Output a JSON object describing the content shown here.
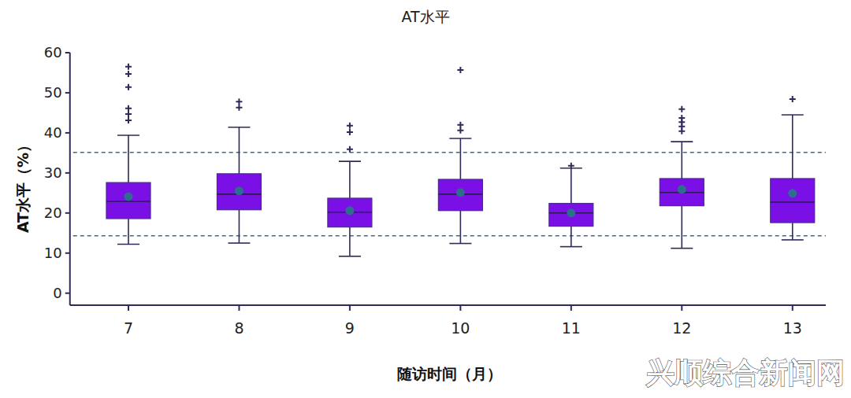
{
  "chart_data": {
    "type": "box",
    "title": "AT水平",
    "x_label": "随访时间（月）",
    "y_label": "AT水平（%）",
    "categories": [
      "7",
      "8",
      "9",
      "10",
      "11",
      "12",
      "13"
    ],
    "boxes": [
      {
        "min": 12.2,
        "q1": 18.6,
        "median": 22.9,
        "q3": 27.6,
        "max": 39.4,
        "mean": 24.1,
        "outliers": [
          56.5,
          54.7,
          51.4,
          46.1,
          44.7,
          43.1
        ]
      },
      {
        "min": 12.5,
        "q1": 20.8,
        "median": 24.7,
        "q3": 29.8,
        "max": 41.4,
        "mean": 25.5,
        "outliers": [
          47.8,
          46.3
        ]
      },
      {
        "min": 9.2,
        "q1": 16.5,
        "median": 20.2,
        "q3": 23.7,
        "max": 32.9,
        "mean": 20.6,
        "outliers": [
          41.8,
          40.2,
          35.9
        ]
      },
      {
        "min": 12.4,
        "q1": 20.6,
        "median": 24.7,
        "q3": 28.4,
        "max": 38.6,
        "mean": 25.1,
        "outliers": [
          55.7,
          42.0,
          40.6
        ]
      },
      {
        "min": 11.6,
        "q1": 16.7,
        "median": 20.0,
        "q3": 22.4,
        "max": 31.2,
        "mean": 20.0,
        "outliers": [
          31.8
        ]
      },
      {
        "min": 11.2,
        "q1": 21.8,
        "median": 25.1,
        "q3": 28.6,
        "max": 37.8,
        "mean": 25.9,
        "outliers": [
          45.9,
          43.7,
          42.7,
          41.6,
          40.4
        ]
      },
      {
        "min": 13.3,
        "q1": 17.6,
        "median": 22.7,
        "q3": 28.6,
        "max": 44.5,
        "mean": 24.9,
        "outliers": [
          48.4
        ]
      }
    ],
    "reference_lines": [
      35.1,
      14.3
    ],
    "color": "#7a10e6",
    "ylim": [
      -3,
      60
    ],
    "yticks": [
      0,
      10,
      20,
      30,
      40,
      50,
      60
    ],
    "grid": false,
    "annotations": [
      "兴顺综合新闻网"
    ]
  }
}
